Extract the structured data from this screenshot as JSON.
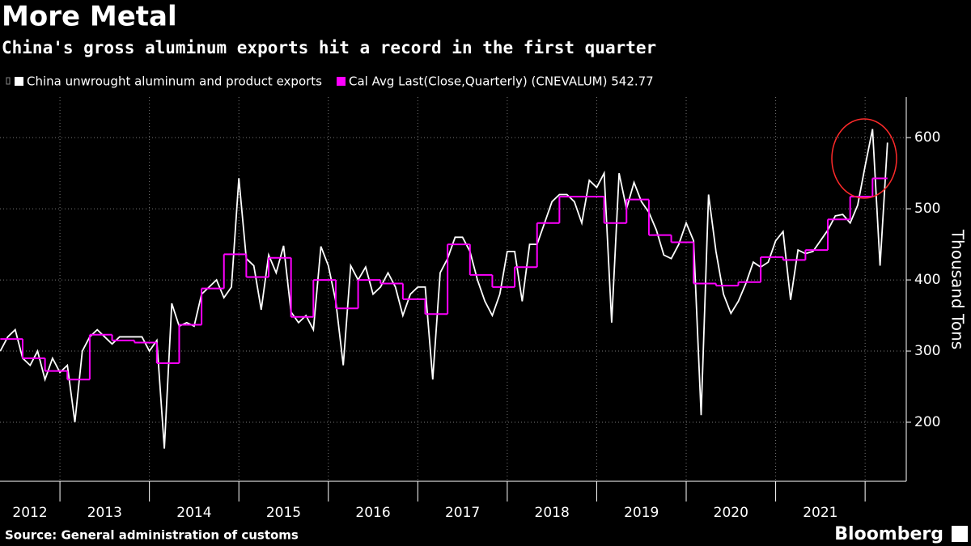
{
  "chart_data": {
    "type": "line",
    "title": "More Metal",
    "subtitle": "China's gross aluminum exports hit a record in the first quarter",
    "y_label": "Thousand Tons",
    "source": "Source: General administration of customs",
    "brand": "Bloomberg",
    "year_labels": [
      "2012",
      "2013",
      "2014",
      "2015",
      "2016",
      "2017",
      "2018",
      "2019",
      "2020",
      "2021"
    ],
    "xlim": [
      2012.33,
      2022.46
    ],
    "xticks": [
      2013,
      2014,
      2015,
      2016,
      2017,
      2018,
      2019,
      2020,
      2021,
      2022
    ],
    "ylim": [
      117,
      657
    ],
    "yticks": [
      200,
      300,
      400,
      500,
      600
    ],
    "grid": true,
    "series": [
      {
        "name": "China unwrought aluminum and product exports",
        "color": "#ffffff",
        "x": [
          2012.333,
          2012.417,
          2012.5,
          2012.583,
          2012.667,
          2012.75,
          2012.833,
          2012.917,
          2013,
          2013.083,
          2013.167,
          2013.25,
          2013.333,
          2013.417,
          2013.5,
          2013.583,
          2013.667,
          2013.75,
          2013.833,
          2013.917,
          2014,
          2014.083,
          2014.167,
          2014.25,
          2014.333,
          2014.417,
          2014.5,
          2014.583,
          2014.667,
          2014.75,
          2014.833,
          2014.917,
          2015,
          2015.083,
          2015.167,
          2015.25,
          2015.333,
          2015.417,
          2015.5,
          2015.583,
          2015.667,
          2015.75,
          2015.833,
          2015.917,
          2016,
          2016.083,
          2016.167,
          2016.25,
          2016.333,
          2016.417,
          2016.5,
          2016.583,
          2016.667,
          2016.75,
          2016.833,
          2016.917,
          2017,
          2017.083,
          2017.167,
          2017.25,
          2017.333,
          2017.417,
          2017.5,
          2017.583,
          2017.667,
          2017.75,
          2017.833,
          2017.917,
          2018,
          2018.083,
          2018.167,
          2018.25,
          2018.333,
          2018.417,
          2018.5,
          2018.583,
          2018.667,
          2018.75,
          2018.833,
          2018.917,
          2019,
          2019.083,
          2019.167,
          2019.25,
          2019.333,
          2019.417,
          2019.5,
          2019.583,
          2019.667,
          2019.75,
          2019.833,
          2019.917,
          2020,
          2020.083,
          2020.167,
          2020.25,
          2020.333,
          2020.417,
          2020.5,
          2020.583,
          2020.667,
          2020.75,
          2020.833,
          2020.917,
          2021,
          2021.083,
          2021.167,
          2021.25,
          2021.333,
          2021.417,
          2021.5,
          2021.583,
          2021.667,
          2021.75,
          2021.833,
          2021.917,
          2022,
          2022.083,
          2022.167,
          2022.25
        ],
        "values": [
          300,
          320,
          330,
          290,
          280,
          300,
          260,
          290,
          270,
          280,
          200,
          300,
          320,
          330,
          320,
          310,
          320,
          320,
          320,
          320,
          300,
          315,
          163,
          367,
          335,
          340,
          335,
          380,
          390,
          400,
          375,
          390,
          543,
          430,
          420,
          358,
          435,
          410,
          448,
          355,
          340,
          350,
          330,
          447,
          420,
          370,
          280,
          420,
          400,
          418,
          380,
          390,
          410,
          390,
          350,
          380,
          390,
          390,
          260,
          410,
          430,
          460,
          460,
          440,
          400,
          370,
          350,
          380,
          440,
          440,
          370,
          450,
          450,
          480,
          510,
          520,
          520,
          510,
          480,
          540,
          530,
          550,
          340,
          550,
          500,
          537,
          510,
          495,
          470,
          435,
          430,
          450,
          480,
          455,
          210,
          520,
          440,
          380,
          353,
          370,
          395,
          425,
          418,
          425,
          455,
          468,
          372,
          442,
          437,
          440,
          455,
          470,
          490,
          492,
          480,
          505,
          560,
          612,
          420,
          593
        ]
      },
      {
        "name": "Cal Avg Last(Close,Quarterly) (CNEVALUM) 542.77",
        "color": "#ff00ff",
        "step": true,
        "x": [
          2012.333,
          2012.583,
          2012.833,
          2013.083,
          2013.333,
          2013.583,
          2013.833,
          2014.083,
          2014.333,
          2014.583,
          2014.833,
          2015.083,
          2015.333,
          2015.583,
          2015.833,
          2016.083,
          2016.333,
          2016.583,
          2016.833,
          2017.083,
          2017.333,
          2017.583,
          2017.833,
          2018.083,
          2018.333,
          2018.583,
          2018.833,
          2019.083,
          2019.333,
          2019.583,
          2019.833,
          2020.083,
          2020.333,
          2020.583,
          2020.833,
          2021.083,
          2021.333,
          2021.583,
          2021.833,
          2022.083
        ],
        "values": [
          317,
          290,
          272,
          260,
          323,
          315,
          312,
          283,
          337,
          388,
          436,
          404,
          431,
          348,
          400,
          360,
          400,
          395,
          373,
          352,
          450,
          407,
          390,
          418,
          480,
          517,
          517,
          480,
          513,
          463,
          453,
          395,
          392,
          397,
          432,
          428,
          442,
          485,
          517,
          542.77
        ]
      }
    ]
  }
}
